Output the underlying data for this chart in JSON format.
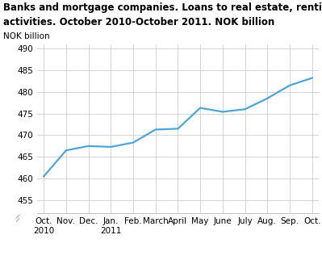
{
  "title_line1": "Banks and mortgage companies. Loans to real estate, renting and business",
  "title_line2": "activities. October 2010-October 2011. NOK billion",
  "ylabel": "NOK billion",
  "x_labels": [
    "Oct.\n2010",
    "Nov.",
    "Dec.",
    "Jan.\n2011",
    "Feb.",
    "March",
    "April",
    "May",
    "June",
    "July",
    "Aug.",
    "Sep.",
    "Oct."
  ],
  "y_values": [
    460.5,
    466.5,
    467.5,
    467.3,
    468.3,
    471.3,
    471.5,
    476.3,
    475.4,
    476.0,
    478.5,
    481.5,
    483.2
  ],
  "line_color": "#4da6d8",
  "line_width": 1.6,
  "yticks": [
    455,
    460,
    465,
    470,
    475,
    480,
    485,
    490
  ],
  "ymin": 452,
  "ymax": 491,
  "grid_color": "#cccccc",
  "background_color": "#ffffff",
  "title_fontsize": 8.5,
  "ylabel_fontsize": 7.5,
  "tick_fontsize": 7.5
}
